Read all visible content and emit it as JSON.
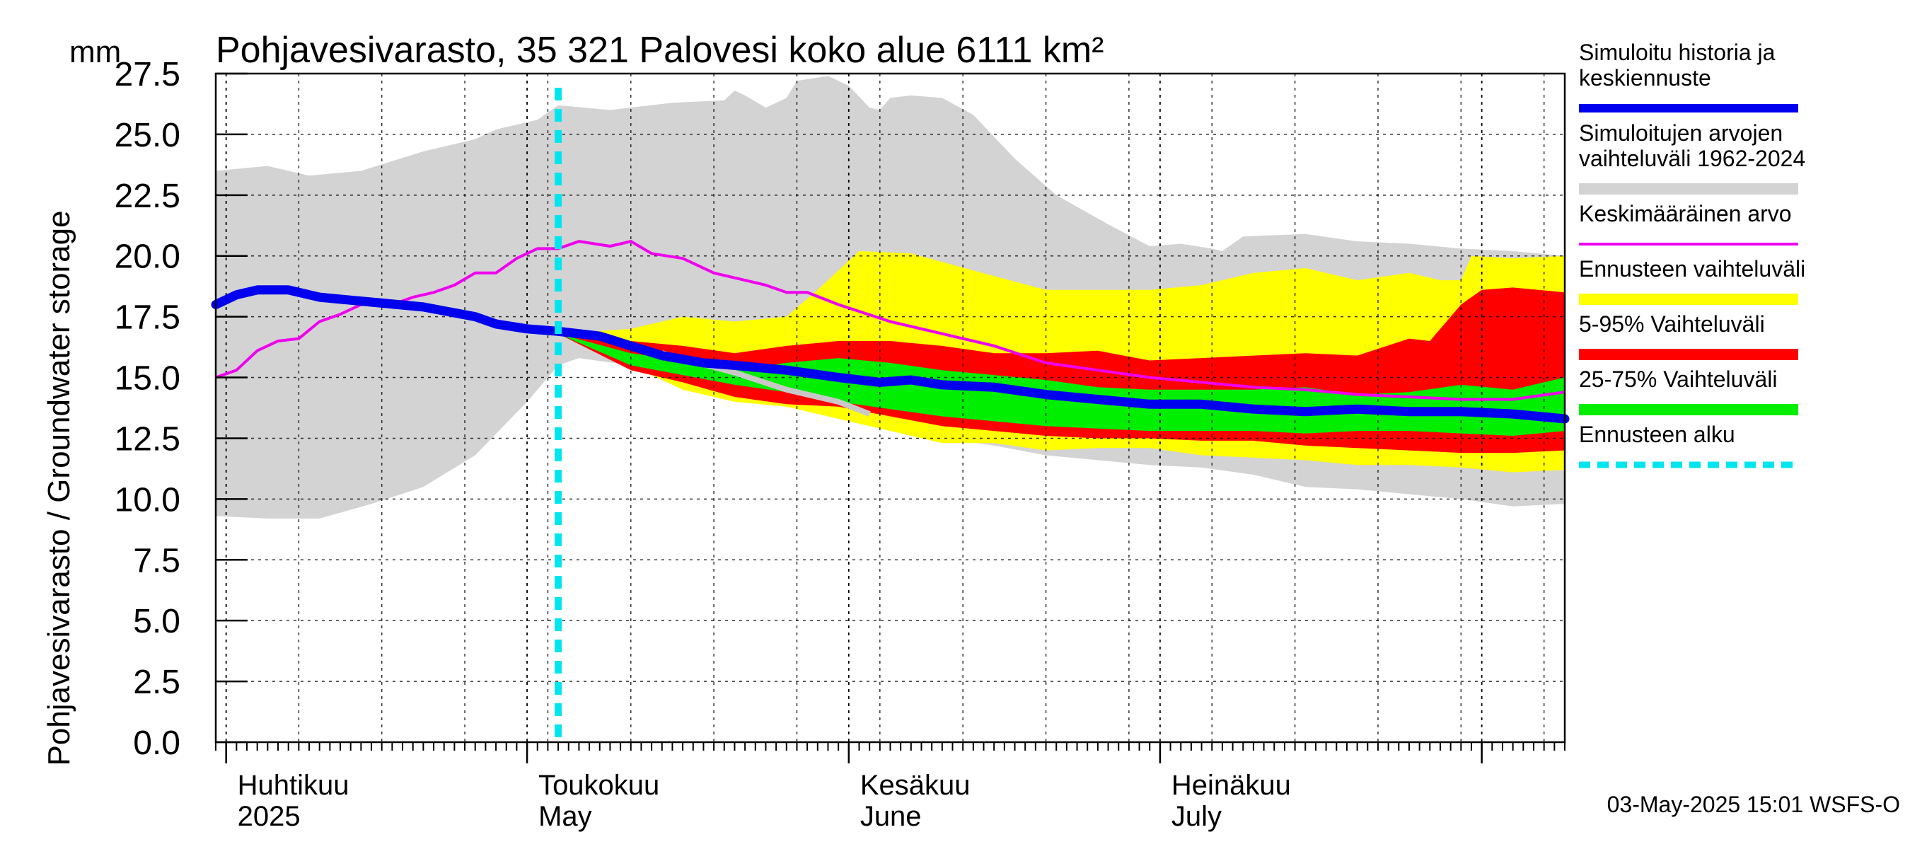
{
  "chart_data": {
    "type": "area",
    "title": "Pohjavesivarasto, 35 321 Palovesi koko alue 6111 km²",
    "unit_label": "mm",
    "ylabel": "Pohjavesivarasto / Groundwater storage",
    "ylim": [
      0,
      27.5
    ],
    "y_ticks": [
      "0.0",
      "2.5",
      "5.0",
      "7.5",
      "10.0",
      "12.5",
      "15.0",
      "17.5",
      "20.0",
      "22.5",
      "25.0",
      "27.5"
    ],
    "x_range_days": [
      0,
      130
    ],
    "month_starts": [
      1,
      30,
      61,
      91,
      122
    ],
    "month_labels": [
      {
        "day": 1,
        "fi": "Huhtikuu",
        "en": "2025"
      },
      {
        "day": 30,
        "fi": "Toukokuu",
        "en": "May"
      },
      {
        "day": 61,
        "fi": "Kesäkuu",
        "en": "June"
      },
      {
        "day": 91,
        "fi": "Heinäkuu",
        "en": "July"
      }
    ],
    "forecast_start_day": 33,
    "footer": "03-May-2025 15:01 WSFS-O",
    "colors": {
      "history_range": "#d3d3d3",
      "forecast_range": "#ffff00",
      "p5_95": "#ff0000",
      "p25_75": "#00ee00",
      "mean": "#ee00ee",
      "median": "#0000ee",
      "forecast_start": "#00e5ee",
      "grid": "#000000"
    },
    "legend": [
      {
        "key": "median",
        "label_lines": [
          "Simuloitu historia ja",
          "keskiennuste"
        ]
      },
      {
        "key": "history_range",
        "label_lines": [
          "Simuloitujen arvojen",
          "vaihteluväli 1962-2024"
        ]
      },
      {
        "key": "mean",
        "label_lines": [
          "Keskimääräinen arvo"
        ]
      },
      {
        "key": "forecast_range",
        "label_lines": [
          "Ennusteen vaihteluväli"
        ]
      },
      {
        "key": "p5_95",
        "label_lines": [
          "5-95% Vaihteluväli"
        ]
      },
      {
        "key": "p25_75",
        "label_lines": [
          "25-75% Vaihteluväli"
        ]
      },
      {
        "key": "forecast_start",
        "label_lines": [
          "Ennusteen alku"
        ]
      }
    ],
    "series": {
      "history_upper": [
        [
          0,
          23.5
        ],
        [
          5,
          23.7
        ],
        [
          9,
          23.3
        ],
        [
          14,
          23.5
        ],
        [
          20,
          24.3
        ],
        [
          25,
          24.8
        ],
        [
          27,
          25.2
        ],
        [
          31,
          25.6
        ],
        [
          33,
          26.2
        ],
        [
          38,
          26.0
        ],
        [
          44,
          26.3
        ],
        [
          49,
          26.4
        ],
        [
          50,
          26.8
        ],
        [
          51,
          26.6
        ],
        [
          53,
          26.1
        ],
        [
          55,
          26.5
        ],
        [
          56,
          27.2
        ],
        [
          59,
          27.4
        ],
        [
          61,
          27.0
        ],
        [
          63,
          26.1
        ],
        [
          64,
          26.0
        ],
        [
          65,
          26.5
        ],
        [
          67,
          26.6
        ],
        [
          70,
          26.5
        ],
        [
          73,
          25.8
        ],
        [
          77,
          24.0
        ],
        [
          81,
          22.5
        ],
        [
          86,
          21.3
        ],
        [
          90,
          20.4
        ],
        [
          93,
          20.5
        ],
        [
          96,
          20.3
        ],
        [
          97,
          20.2
        ],
        [
          99,
          20.8
        ],
        [
          105,
          20.9
        ],
        [
          110,
          20.6
        ],
        [
          115,
          20.5
        ],
        [
          120,
          20.3
        ],
        [
          125,
          20.2
        ],
        [
          130,
          20.0
        ]
      ],
      "history_lower": [
        [
          0,
          9.3
        ],
        [
          5,
          9.2
        ],
        [
          10,
          9.2
        ],
        [
          15,
          9.8
        ],
        [
          20,
          10.5
        ],
        [
          25,
          11.8
        ],
        [
          30,
          14.0
        ],
        [
          33,
          15.5
        ],
        [
          35,
          15.8
        ],
        [
          40,
          15.5
        ],
        [
          45,
          15.5
        ],
        [
          50,
          15.0
        ],
        [
          55,
          14.2
        ],
        [
          60,
          13.5
        ],
        [
          65,
          13.0
        ],
        [
          70,
          12.5
        ],
        [
          75,
          12.2
        ],
        [
          80,
          11.8
        ],
        [
          85,
          11.6
        ],
        [
          90,
          11.4
        ],
        [
          95,
          11.3
        ],
        [
          100,
          11.0
        ],
        [
          105,
          10.5
        ],
        [
          110,
          10.4
        ],
        [
          115,
          10.2
        ],
        [
          120,
          10.0
        ],
        [
          125,
          9.7
        ],
        [
          130,
          9.8
        ]
      ],
      "forecast_upper": [
        [
          33,
          16.8
        ],
        [
          40,
          17.0
        ],
        [
          45,
          17.5
        ],
        [
          50,
          17.3
        ],
        [
          55,
          17.5
        ],
        [
          58,
          18.6
        ],
        [
          62,
          20.2
        ],
        [
          67,
          20.1
        ],
        [
          73,
          19.4
        ],
        [
          80,
          18.6
        ],
        [
          86,
          18.6
        ],
        [
          90,
          18.6
        ],
        [
          95,
          18.8
        ],
        [
          100,
          19.3
        ],
        [
          105,
          19.5
        ],
        [
          110,
          19.0
        ],
        [
          115,
          19.3
        ],
        [
          118,
          19.0
        ],
        [
          120,
          19.0
        ],
        [
          121,
          20.0
        ],
        [
          125,
          19.9
        ],
        [
          130,
          20.0
        ]
      ],
      "forecast_lower": [
        [
          33,
          16.8
        ],
        [
          40,
          15.5
        ],
        [
          45,
          14.5
        ],
        [
          50,
          14.0
        ],
        [
          55,
          13.8
        ],
        [
          60,
          13.3
        ],
        [
          65,
          12.8
        ],
        [
          70,
          12.3
        ],
        [
          75,
          12.3
        ],
        [
          80,
          12.0
        ],
        [
          85,
          12.1
        ],
        [
          90,
          12.1
        ],
        [
          95,
          11.8
        ],
        [
          100,
          11.7
        ],
        [
          105,
          11.6
        ],
        [
          110,
          11.4
        ],
        [
          115,
          11.4
        ],
        [
          120,
          11.3
        ],
        [
          125,
          11.1
        ],
        [
          130,
          11.2
        ]
      ],
      "p95": [
        [
          33,
          16.8
        ],
        [
          40,
          16.5
        ],
        [
          45,
          16.3
        ],
        [
          50,
          16.0
        ],
        [
          55,
          16.3
        ],
        [
          60,
          16.5
        ],
        [
          65,
          16.5
        ],
        [
          70,
          16.3
        ],
        [
          75,
          16.0
        ],
        [
          80,
          16.0
        ],
        [
          85,
          16.1
        ],
        [
          90,
          15.7
        ],
        [
          95,
          15.8
        ],
        [
          100,
          15.9
        ],
        [
          105,
          16.0
        ],
        [
          110,
          15.9
        ],
        [
          115,
          16.6
        ],
        [
          117,
          16.5
        ],
        [
          120,
          18.0
        ],
        [
          122,
          18.6
        ],
        [
          125,
          18.7
        ],
        [
          130,
          18.5
        ]
      ],
      "p5": [
        [
          33,
          16.8
        ],
        [
          40,
          15.3
        ],
        [
          45,
          14.8
        ],
        [
          50,
          14.2
        ],
        [
          55,
          13.9
        ],
        [
          60,
          13.8
        ],
        [
          65,
          13.4
        ],
        [
          70,
          13.0
        ],
        [
          75,
          12.8
        ],
        [
          80,
          12.6
        ],
        [
          85,
          12.5
        ],
        [
          90,
          12.5
        ],
        [
          95,
          12.4
        ],
        [
          100,
          12.4
        ],
        [
          105,
          12.2
        ],
        [
          110,
          12.1
        ],
        [
          115,
          12.0
        ],
        [
          120,
          11.9
        ],
        [
          125,
          11.9
        ],
        [
          130,
          12.0
        ]
      ],
      "p75": [
        [
          33,
          16.8
        ],
        [
          40,
          16.0
        ],
        [
          45,
          15.7
        ],
        [
          50,
          15.3
        ],
        [
          55,
          15.6
        ],
        [
          60,
          15.8
        ],
        [
          65,
          15.6
        ],
        [
          70,
          15.3
        ],
        [
          75,
          15.1
        ],
        [
          80,
          14.9
        ],
        [
          85,
          14.6
        ],
        [
          90,
          14.5
        ],
        [
          95,
          14.5
        ],
        [
          100,
          14.5
        ],
        [
          105,
          14.6
        ],
        [
          110,
          14.3
        ],
        [
          115,
          14.4
        ],
        [
          120,
          14.7
        ],
        [
          125,
          14.5
        ],
        [
          130,
          15.0
        ]
      ],
      "p25": [
        [
          33,
          16.8
        ],
        [
          40,
          15.5
        ],
        [
          45,
          15.1
        ],
        [
          50,
          14.7
        ],
        [
          55,
          14.4
        ],
        [
          60,
          14.0
        ],
        [
          65,
          13.7
        ],
        [
          70,
          13.4
        ],
        [
          75,
          13.2
        ],
        [
          80,
          13.0
        ],
        [
          85,
          12.9
        ],
        [
          90,
          12.8
        ],
        [
          95,
          12.8
        ],
        [
          100,
          12.8
        ],
        [
          105,
          12.7
        ],
        [
          110,
          12.8
        ],
        [
          115,
          12.8
        ],
        [
          120,
          12.7
        ],
        [
          125,
          12.6
        ],
        [
          130,
          12.8
        ]
      ],
      "mean": [
        [
          0,
          15.0
        ],
        [
          2,
          15.3
        ],
        [
          4,
          16.1
        ],
        [
          6,
          16.5
        ],
        [
          8,
          16.6
        ],
        [
          10,
          17.3
        ],
        [
          12,
          17.6
        ],
        [
          14,
          18.0
        ],
        [
          17,
          18.0
        ],
        [
          19,
          18.3
        ],
        [
          21,
          18.5
        ],
        [
          23,
          18.8
        ],
        [
          25,
          19.3
        ],
        [
          27,
          19.3
        ],
        [
          29,
          19.9
        ],
        [
          31,
          20.3
        ],
        [
          33,
          20.3
        ],
        [
          35,
          20.6
        ],
        [
          38,
          20.4
        ],
        [
          40,
          20.6
        ],
        [
          42,
          20.1
        ],
        [
          45,
          19.9
        ],
        [
          48,
          19.3
        ],
        [
          51,
          19.0
        ],
        [
          53,
          18.8
        ],
        [
          55,
          18.5
        ],
        [
          57,
          18.5
        ],
        [
          60,
          18.0
        ],
        [
          65,
          17.3
        ],
        [
          70,
          16.8
        ],
        [
          75,
          16.3
        ],
        [
          80,
          15.6
        ],
        [
          85,
          15.3
        ],
        [
          90,
          15.0
        ],
        [
          95,
          14.8
        ],
        [
          100,
          14.6
        ],
        [
          105,
          14.5
        ],
        [
          110,
          14.3
        ],
        [
          115,
          14.2
        ],
        [
          120,
          14.1
        ],
        [
          125,
          14.1
        ],
        [
          130,
          14.4
        ]
      ],
      "median": [
        [
          0,
          18.0
        ],
        [
          2,
          18.4
        ],
        [
          4,
          18.6
        ],
        [
          7,
          18.6
        ],
        [
          10,
          18.3
        ],
        [
          15,
          18.1
        ],
        [
          20,
          17.9
        ],
        [
          25,
          17.5
        ],
        [
          27,
          17.2
        ],
        [
          30,
          17.0
        ],
        [
          33,
          16.9
        ],
        [
          37,
          16.7
        ],
        [
          40,
          16.3
        ],
        [
          43,
          15.9
        ],
        [
          47,
          15.6
        ],
        [
          50,
          15.5
        ],
        [
          55,
          15.3
        ],
        [
          60,
          15.0
        ],
        [
          64,
          14.8
        ],
        [
          67,
          14.9
        ],
        [
          70,
          14.7
        ],
        [
          75,
          14.6
        ],
        [
          80,
          14.3
        ],
        [
          85,
          14.1
        ],
        [
          90,
          13.9
        ],
        [
          95,
          13.9
        ],
        [
          100,
          13.7
        ],
        [
          105,
          13.6
        ],
        [
          110,
          13.7
        ],
        [
          115,
          13.6
        ],
        [
          120,
          13.6
        ],
        [
          125,
          13.5
        ],
        [
          130,
          13.3
        ]
      ],
      "history_grey_line": [
        [
          43,
          16.0
        ],
        [
          50,
          15.2
        ],
        [
          55,
          14.5
        ],
        [
          60,
          14.0
        ],
        [
          63,
          13.5
        ]
      ]
    }
  }
}
